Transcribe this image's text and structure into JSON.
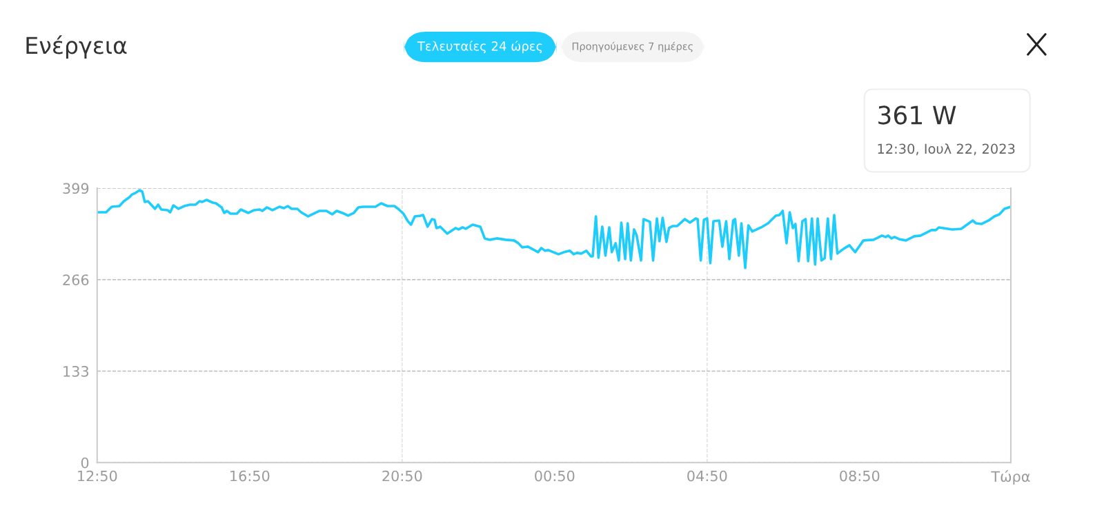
{
  "chart_data": {
    "type": "line",
    "title": "Ενέργεια",
    "annotations": [
      "Τελευταίες 24 ώρες",
      "Προηγούμενες 7 ημέρες",
      "361 W",
      "12:30, Ιουλ 22, 2023"
    ],
    "x": [
      "2023-07-21T12:51",
      "2023-07-21T13:04",
      "2023-07-21T13:13",
      "2023-07-21T13:25",
      "2023-07-21T13:32",
      "2023-07-21T13:41",
      "2023-07-21T13:45",
      "2023-07-21T13:50",
      "2023-07-21T13:57",
      "2023-07-21T14:01",
      "2023-07-21T14:05",
      "2023-07-21T14:10",
      "2023-07-21T14:21",
      "2023-07-21T14:26",
      "2023-07-21T14:31",
      "2023-07-21T14:41",
      "2023-07-21T14:45",
      "2023-07-21T14:50",
      "2023-07-21T14:58",
      "2023-07-21T15:07",
      "2023-07-21T15:16",
      "2023-07-21T15:25",
      "2023-07-21T15:31",
      "2023-07-21T15:35",
      "2023-07-21T15:42",
      "2023-07-21T15:52",
      "2023-07-21T15:57",
      "2023-07-21T16:06",
      "2023-07-21T16:10",
      "2023-07-21T16:14",
      "2023-07-21T16:20",
      "2023-07-21T16:30",
      "2023-07-21T16:36",
      "2023-07-21T16:48",
      "2023-07-21T16:57",
      "2023-07-21T17:06",
      "2023-07-21T17:10",
      "2023-07-21T17:17",
      "2023-07-21T17:26",
      "2023-07-21T17:37",
      "2023-07-21T17:44",
      "2023-07-21T17:50",
      "2023-07-21T17:56",
      "2023-07-21T18:05",
      "2023-07-21T18:11",
      "2023-07-21T18:22",
      "2023-07-21T18:31",
      "2023-07-21T18:40",
      "2023-07-21T18:51",
      "2023-07-21T19:00",
      "2023-07-21T19:07",
      "2023-07-21T19:16",
      "2023-07-21T19:25",
      "2023-07-21T19:34",
      "2023-07-21T19:41",
      "2023-07-21T19:49",
      "2023-07-21T20:08",
      "2023-07-21T20:17",
      "2023-07-21T20:27",
      "2023-07-21T20:38",
      "2023-07-21T20:45",
      "2023-07-21T20:52",
      "2023-07-21T20:59",
      "2023-07-21T21:04",
      "2023-07-21T21:10",
      "2023-07-21T21:19",
      "2023-07-21T21:23",
      "2023-07-21T21:30",
      "2023-07-21T21:37",
      "2023-07-21T21:41",
      "2023-07-21T21:44",
      "2023-07-21T21:50",
      "2023-07-21T22:01",
      "2023-07-21T22:14",
      "2023-07-21T22:19",
      "2023-07-21T22:25",
      "2023-07-21T22:30",
      "2023-07-21T22:41",
      "2023-07-21T22:53",
      "2023-07-21T23:00",
      "2023-07-21T23:08",
      "2023-07-21T23:19",
      "2023-07-21T23:33",
      "2023-07-21T23:46",
      "2023-07-21T23:53",
      "2023-07-21T23:59",
      "2023-07-22T00:08",
      "2023-07-22T00:24",
      "2023-07-22T00:29",
      "2023-07-22T00:35",
      "2023-07-22T00:40",
      "2023-07-22T00:56",
      "2023-07-22T01:05",
      "2023-07-22T01:14",
      "2023-07-22T01:20",
      "2023-07-22T01:25",
      "2023-07-22T01:32",
      "2023-07-22T01:40",
      "2023-07-22T01:47",
      "2023-07-22T01:50",
      "2023-07-22T01:55",
      "2023-07-22T01:59",
      "2023-07-22T02:05",
      "2023-07-22T02:10",
      "2023-07-22T02:16",
      "2023-07-22T02:20",
      "2023-07-22T02:26",
      "2023-07-22T02:31",
      "2023-07-22T02:35",
      "2023-07-22T02:41",
      "2023-07-22T02:45",
      "2023-07-22T02:50",
      "2023-07-22T02:55",
      "2023-07-22T02:59",
      "2023-07-22T03:06",
      "2023-07-22T03:10",
      "2023-07-22T03:20",
      "2023-07-22T03:25",
      "2023-07-22T03:31",
      "2023-07-22T03:35",
      "2023-07-22T03:40",
      "2023-07-22T03:46",
      "2023-07-22T03:50",
      "2023-07-22T03:56",
      "2023-07-22T04:03",
      "2023-07-22T04:15",
      "2023-07-22T04:23",
      "2023-07-22T04:32",
      "2023-07-22T04:35",
      "2023-07-22T04:40",
      "2023-07-22T04:45",
      "2023-07-22T04:50",
      "2023-07-22T04:55",
      "2023-07-22T05:00",
      "2023-07-22T05:09",
      "2023-07-22T05:14",
      "2023-07-22T05:20",
      "2023-07-22T05:25",
      "2023-07-22T05:31",
      "2023-07-22T05:34",
      "2023-07-22T05:40",
      "2023-07-22T05:44",
      "2023-07-22T05:50",
      "2023-07-22T05:55",
      "2023-07-22T06:01",
      "2023-07-22T06:15",
      "2023-07-22T06:26",
      "2023-07-22T06:38",
      "2023-07-22T06:44",
      "2023-07-22T06:49",
      "2023-07-22T06:55",
      "2023-07-22T07:00",
      "2023-07-22T07:05",
      "2023-07-22T07:09",
      "2023-07-22T07:14",
      "2023-07-22T07:20",
      "2023-07-22T07:25",
      "2023-07-22T07:29",
      "2023-07-22T07:35",
      "2023-07-22T07:40",
      "2023-07-22T07:44",
      "2023-07-22T07:50",
      "2023-07-22T07:55",
      "2023-07-22T08:00",
      "2023-07-22T08:05",
      "2023-07-22T08:10",
      "2023-07-22T08:15",
      "2023-07-22T08:25",
      "2023-07-22T08:34",
      "2023-07-22T08:43",
      "2023-07-22T08:56",
      "2023-07-22T09:12",
      "2023-07-22T09:25",
      "2023-07-22T09:31",
      "2023-07-22T09:35",
      "2023-07-22T09:40",
      "2023-07-22T09:45",
      "2023-07-22T09:52",
      "2023-07-22T10:03",
      "2023-07-22T10:16",
      "2023-07-22T10:26",
      "2023-07-22T10:43",
      "2023-07-22T10:50",
      "2023-07-22T10:55",
      "2023-07-22T11:16",
      "2023-07-22T11:30",
      "2023-07-22T11:39",
      "2023-07-22T11:48",
      "2023-07-22T11:53",
      "2023-07-22T12:02",
      "2023-07-22T12:13",
      "2023-07-22T12:22",
      "2023-07-22T12:30",
      "2023-07-22T12:38",
      "2023-07-22T12:48"
    ],
    "series": [
      {
        "color": "#1ecdfc",
        "values": [
          364,
          364,
          372,
          373,
          380,
          386,
          390,
          392,
          396,
          394,
          379,
          380,
          369,
          375,
          368,
          367,
          364,
          374,
          369,
          373,
          375,
          375,
          380,
          379,
          382,
          378,
          377,
          371,
          363,
          366,
          362,
          362,
          368,
          363,
          367,
          368,
          366,
          371,
          367,
          372,
          370,
          373,
          369,
          369,
          364,
          358,
          362,
          366,
          366,
          361,
          366,
          363,
          359,
          363,
          371,
          372,
          372,
          377,
          373,
          373,
          368,
          362,
          351,
          346,
          358,
          359,
          360,
          343,
          354,
          353,
          341,
          343,
          333,
          341,
          339,
          342,
          340,
          346,
          343,
          326,
          324,
          326,
          324,
          323,
          319,
          313,
          314,
          306,
          312,
          308,
          309,
          303,
          306,
          308,
          303,
          305,
          304,
          308,
          300,
          300,
          358,
          298,
          343,
          301,
          342,
          306,
          319,
          294,
          349,
          296,
          348,
          294,
          339,
          331,
          294,
          354,
          350,
          294,
          355,
          322,
          356,
          321,
          341,
          344,
          344,
          354,
          349,
          355,
          354,
          294,
          353,
          355,
          290,
          351,
          352,
          314,
          351,
          296,
          352,
          354,
          301,
          348,
          283,
          345,
          336,
          342,
          348,
          359,
          360,
          366,
          319,
          364,
          341,
          347,
          293,
          351,
          354,
          293,
          355,
          288,
          355,
          294,
          297,
          355,
          296,
          360,
          304,
          311,
          316,
          306,
          323,
          324,
          330,
          328,
          330,
          326,
          328,
          325,
          323,
          329,
          330,
          338,
          338,
          342,
          339,
          340,
          346,
          352,
          348,
          347,
          352,
          358,
          361,
          369,
          372
        ]
      }
    ],
    "xlim": [
      "2023-07-21T12:50",
      "2023-07-22T12:48"
    ],
    "xticks": [
      {
        "value": "2023-07-21T12:50",
        "label": "12:50"
      },
      {
        "value": "2023-07-21T16:50",
        "label": "16:50"
      },
      {
        "value": "2023-07-21T20:50",
        "label": "20:50"
      },
      {
        "value": "2023-07-22T00:50",
        "label": "00:50"
      },
      {
        "value": "2023-07-22T04:50",
        "label": "04:50"
      },
      {
        "value": "2023-07-22T08:50",
        "label": "08:50"
      },
      {
        "value": "2023-07-22T12:48",
        "label": "Τώρα"
      }
    ],
    "ylim": [
      0,
      399
    ],
    "yticks": [
      0,
      133,
      266,
      399
    ],
    "grid": "y",
    "marker": "none",
    "line_style": "solid",
    "ref_lines": [
      {
        "axis": "x",
        "value": "2023-07-21T20:50",
        "color": "#dddddd",
        "line_style": "dashed"
      },
      {
        "axis": "x",
        "value": "2023-07-22T04:50",
        "color": "#dddddd",
        "line_style": "dashed"
      }
    ]
  }
}
